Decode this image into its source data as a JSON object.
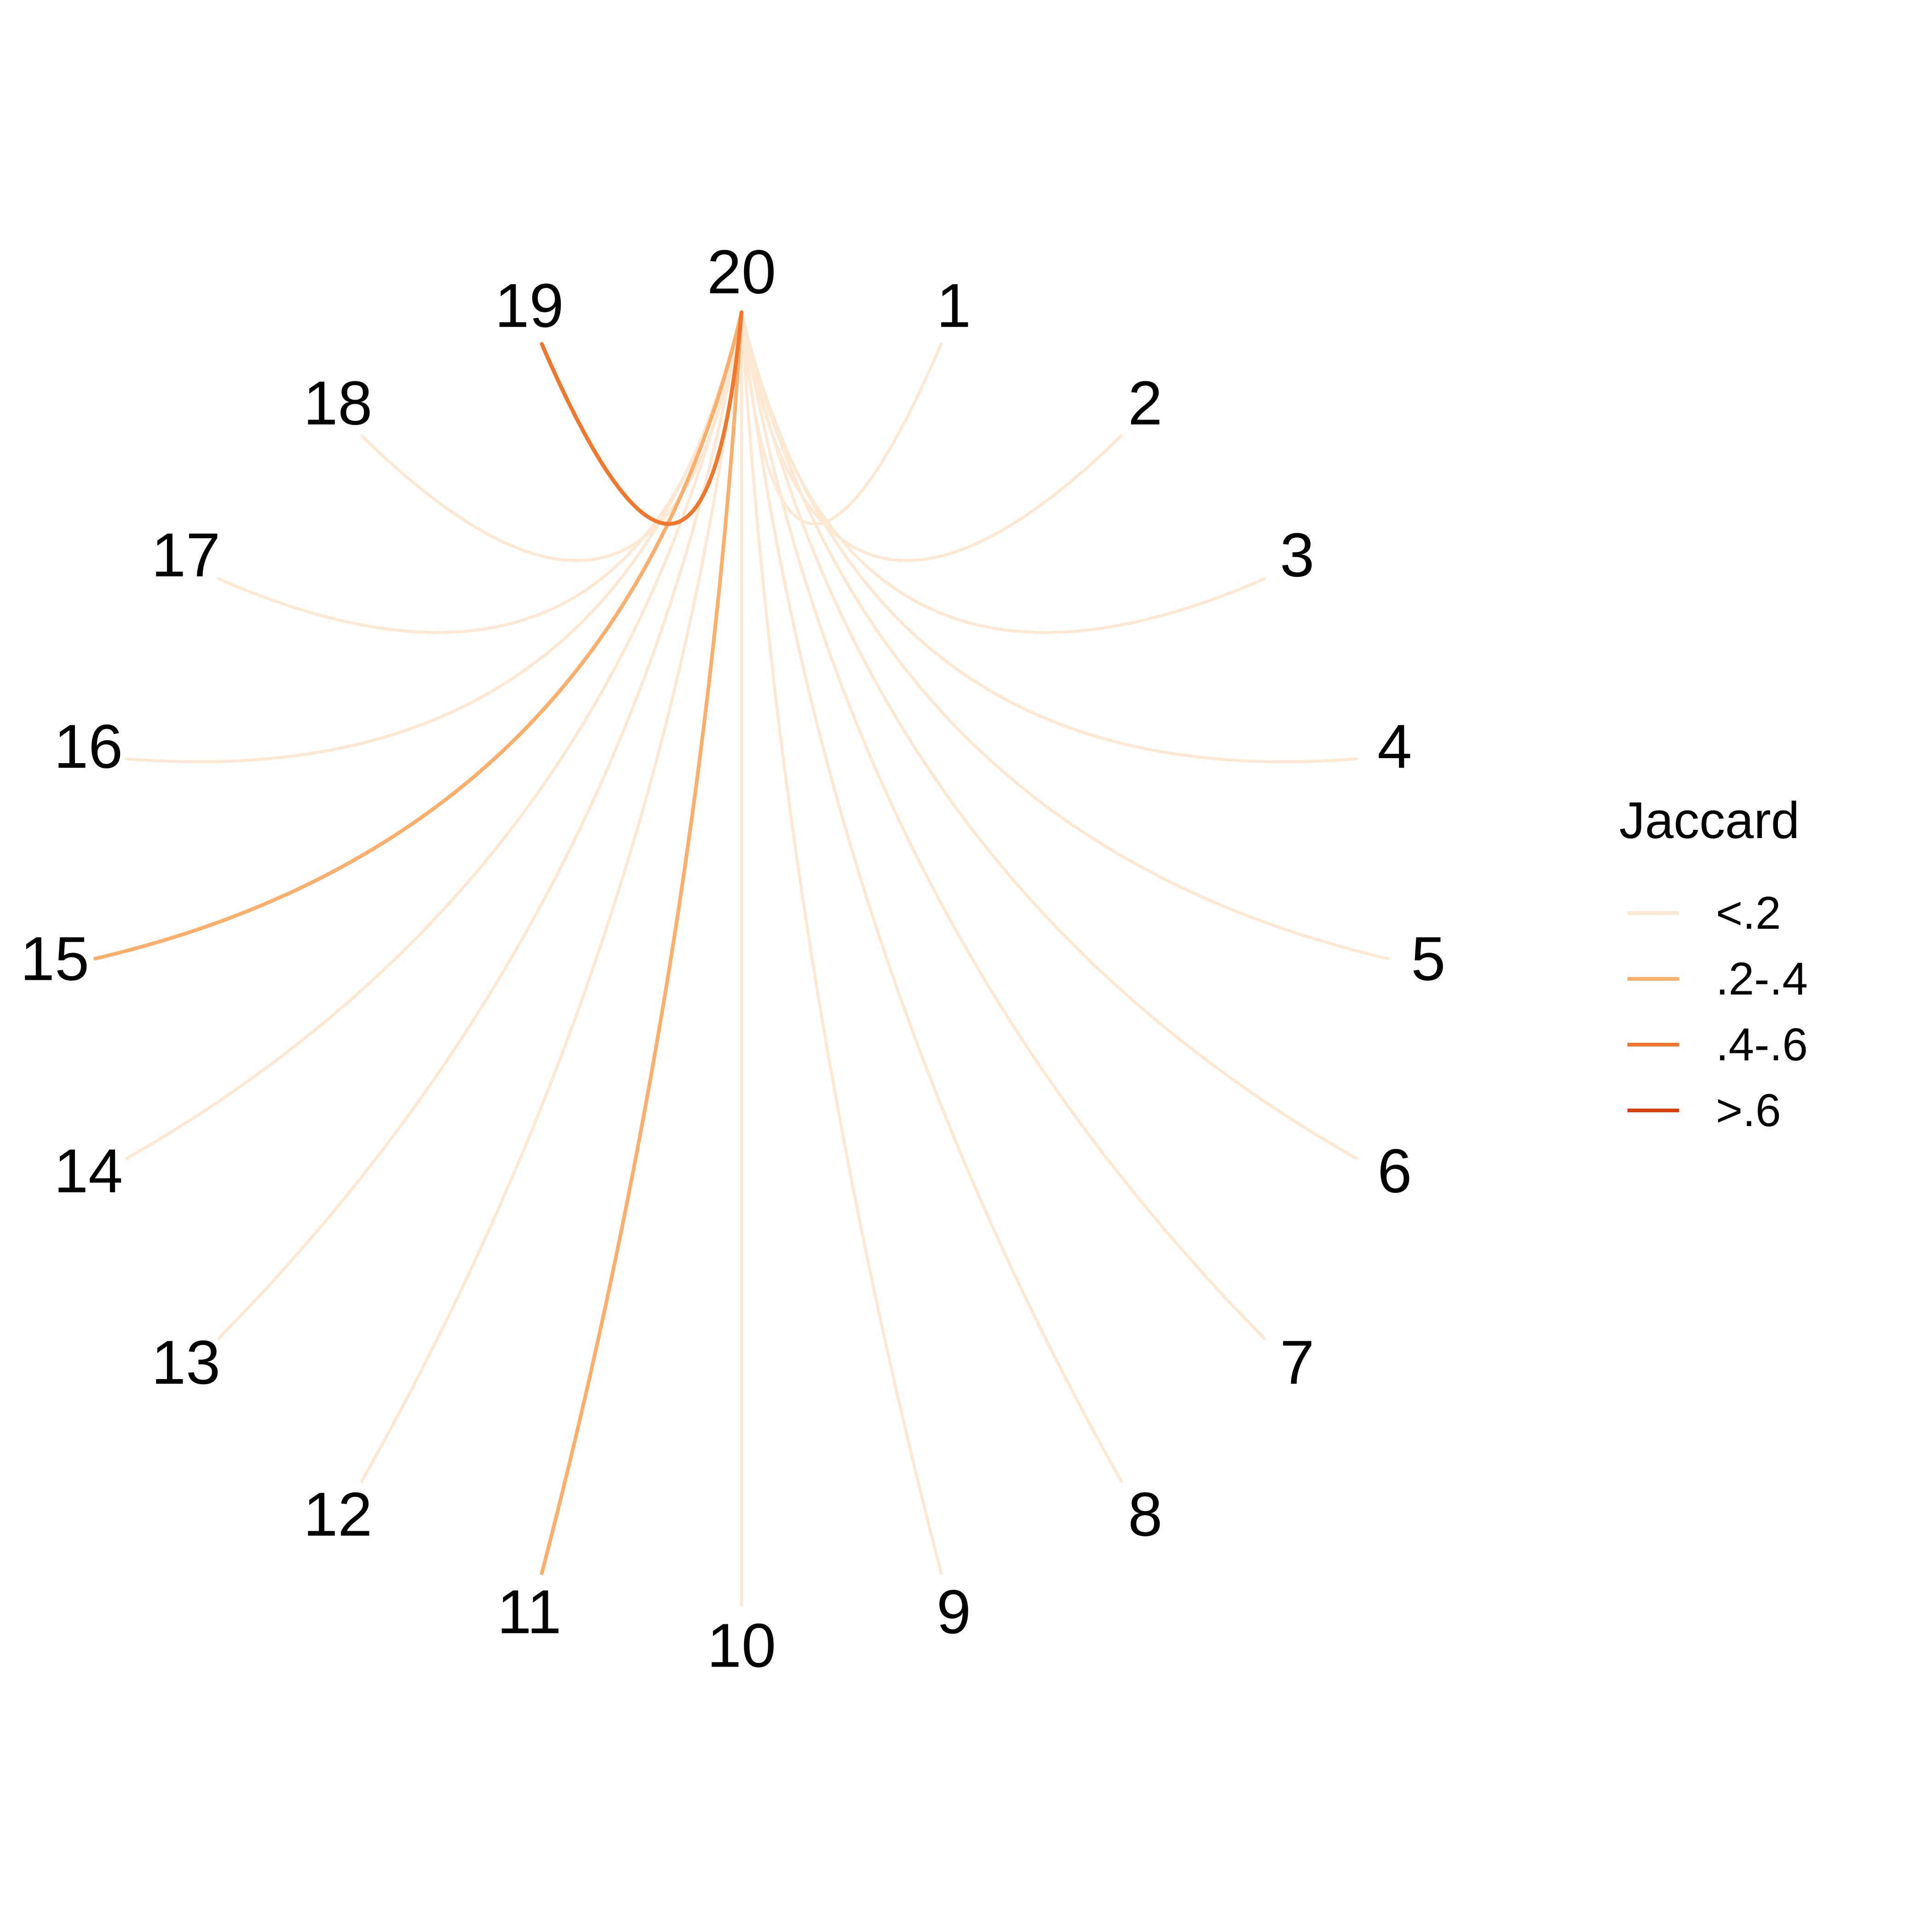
{
  "chart_data": {
    "type": "arc",
    "nodes": [
      "1",
      "2",
      "3",
      "4",
      "5",
      "6",
      "7",
      "8",
      "9",
      "10",
      "11",
      "12",
      "13",
      "14",
      "15",
      "16",
      "17",
      "18",
      "19",
      "20"
    ],
    "edges": [
      {
        "from": "20",
        "to": "1",
        "category": "<.2"
      },
      {
        "from": "20",
        "to": "2",
        "category": "<.2"
      },
      {
        "from": "20",
        "to": "3",
        "category": "<.2"
      },
      {
        "from": "20",
        "to": "4",
        "category": "<.2"
      },
      {
        "from": "20",
        "to": "5",
        "category": "<.2"
      },
      {
        "from": "20",
        "to": "6",
        "category": "<.2"
      },
      {
        "from": "20",
        "to": "7",
        "category": "<.2"
      },
      {
        "from": "20",
        "to": "8",
        "category": "<.2"
      },
      {
        "from": "20",
        "to": "9",
        "category": "<.2"
      },
      {
        "from": "20",
        "to": "10",
        "category": "<.2"
      },
      {
        "from": "20",
        "to": "11",
        "category": ".2-.4"
      },
      {
        "from": "20",
        "to": "12",
        "category": "<.2"
      },
      {
        "from": "20",
        "to": "13",
        "category": "<.2"
      },
      {
        "from": "20",
        "to": "14",
        "category": "<.2"
      },
      {
        "from": "20",
        "to": "15",
        "category": ".2-.4"
      },
      {
        "from": "20",
        "to": "16",
        "category": "<.2"
      },
      {
        "from": "20",
        "to": "17",
        "category": "<.2"
      },
      {
        "from": "20",
        "to": "18",
        "category": "<.2"
      },
      {
        "from": "20",
        "to": "19",
        "category": ".4-.6"
      }
    ],
    "legend": {
      "title": "Jaccard",
      "placement": "right",
      "entries": [
        {
          "label": "<.2",
          "color": "#fde8d4"
        },
        {
          "label": ".2-.4",
          "color": "#fdae6b"
        },
        {
          "label": ".4-.6",
          "color": "#f1772c"
        },
        {
          "label": ">.6",
          "color": "#d63f0e"
        }
      ]
    }
  }
}
